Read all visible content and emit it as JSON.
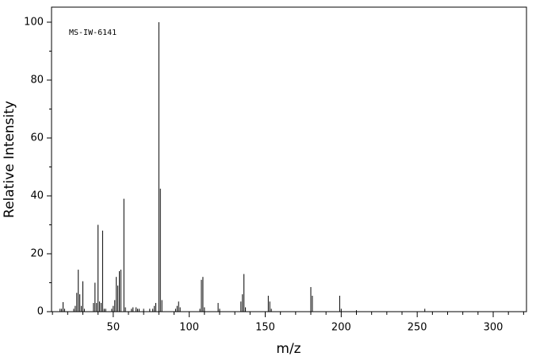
{
  "chart_data": {
    "type": "bar",
    "annotation": "MS-IW-6141",
    "x_label": "m/z",
    "y_label": "Relative Intensity",
    "color": "#000000",
    "x": [
      15,
      16,
      17,
      18,
      24,
      25,
      26,
      27,
      28,
      29,
      30,
      31,
      37,
      38,
      39,
      40,
      41,
      42,
      43,
      44,
      45,
      49,
      50,
      51,
      52,
      53,
      54,
      55,
      57,
      58,
      62,
      63,
      65,
      66,
      67,
      70,
      74,
      76,
      77,
      78,
      80,
      81,
      82,
      91,
      92,
      93,
      94,
      107,
      108,
      109,
      110,
      119,
      120,
      134,
      135,
      136,
      137,
      152,
      153,
      154,
      180,
      181,
      199,
      200,
      210,
      255
    ],
    "values": [
      1,
      1,
      3.3,
      1,
      1,
      2,
      6.5,
      14.5,
      6,
      2,
      10.5,
      1,
      3,
      10,
      3,
      30,
      3.5,
      3,
      28,
      1,
      1,
      1,
      2,
      4,
      12,
      9,
      14,
      14.5,
      39,
      1.5,
      1,
      1.5,
      1.5,
      1,
      1,
      1,
      1,
      1,
      2,
      3,
      100,
      42.5,
      4,
      1,
      2,
      3.5,
      1.5,
      1,
      11,
      12,
      1.5,
      3,
      1,
      3.5,
      6,
      13,
      1.5,
      5.5,
      3.5,
      1,
      8.5,
      5.5,
      5.5,
      1,
      0.5,
      1
    ],
    "xlim": [
      9.4,
      321.9
    ],
    "ylim": [
      0,
      105.2
    ],
    "xticks": [
      50,
      100,
      150,
      200,
      250,
      300
    ],
    "xminorticks": [
      10,
      20,
      30,
      40,
      60,
      70,
      80,
      90,
      110,
      120,
      130,
      140,
      160,
      170,
      180,
      190,
      210,
      220,
      230,
      240,
      260,
      270,
      280,
      290,
      310,
      320
    ],
    "yticks": [
      0,
      20,
      40,
      60,
      80,
      100
    ],
    "yminorticks": [
      10,
      30,
      50,
      70,
      90
    ]
  }
}
